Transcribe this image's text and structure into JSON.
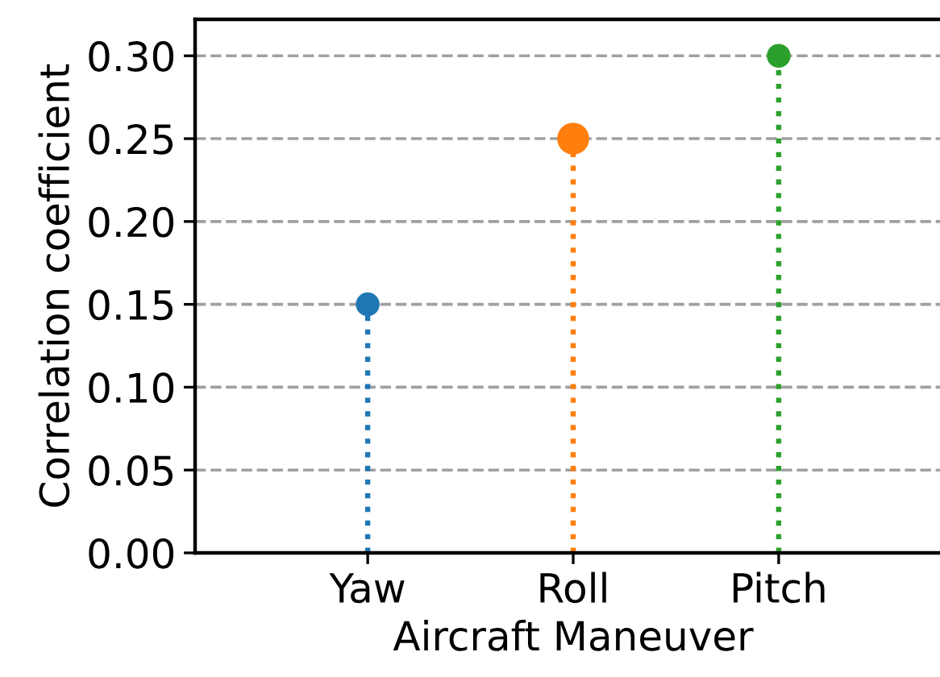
{
  "chart_data": {
    "type": "lollipop",
    "xlabel": "Aircraft Maneuver",
    "ylabel": "Correlation coefficient",
    "categories": [
      "Yaw",
      "Roll",
      "Pitch"
    ],
    "values": [
      0.15,
      0.25,
      0.3
    ],
    "colors": [
      "#1f77b4",
      "#ff7f0e",
      "#2ca02c"
    ],
    "sizes": [
      0.55,
      1,
      0.55
    ],
    "ylim": [
      0,
      0.322
    ],
    "yticks": [
      {
        "value": 0,
        "label": "0.00"
      },
      {
        "value": 0.05,
        "label": "0.05"
      },
      {
        "value": 0.1,
        "label": "0.10"
      },
      {
        "value": 0.15,
        "label": "0.15"
      },
      {
        "value": 0.2,
        "label": "0.20"
      },
      {
        "value": 0.25,
        "label": "0.25"
      },
      {
        "value": 0.3,
        "label": "0.30"
      }
    ],
    "grid": "y",
    "marker": "circle",
    "line_style": "dotted"
  }
}
